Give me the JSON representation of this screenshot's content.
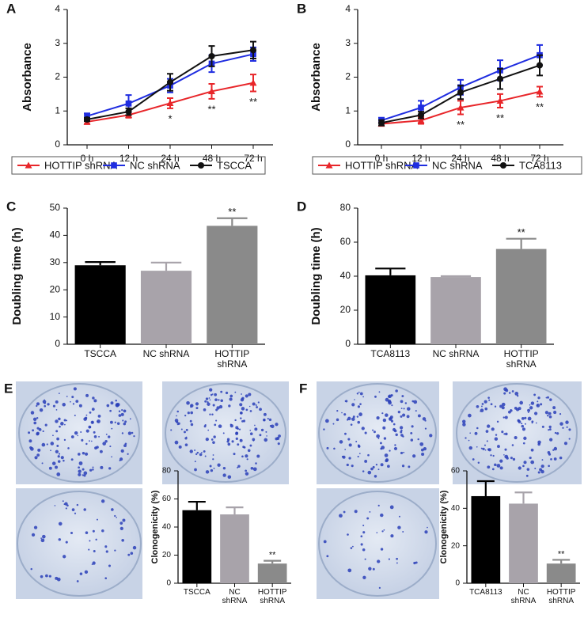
{
  "chart_data": [
    {
      "label": "A",
      "type": "line",
      "y_label": "Absorbance",
      "categories": [
        "0 h",
        "12 h",
        "24 h",
        "48 h",
        "72 h"
      ],
      "ylim": [
        0,
        4
      ],
      "yticks": [
        0,
        1,
        2,
        3,
        4
      ],
      "series": [
        {
          "name": "HOTTIP shRNA",
          "color": "#e8262a",
          "marker": "triangle",
          "values": [
            0.68,
            0.88,
            1.23,
            1.58,
            1.83
          ],
          "errors": [
            0.07,
            0.08,
            0.15,
            0.22,
            0.25
          ]
        },
        {
          "name": "NC shRNA",
          "color": "#1f2de0",
          "marker": "square",
          "values": [
            0.85,
            1.22,
            1.75,
            2.4,
            2.68
          ],
          "errors": [
            0.08,
            0.25,
            0.2,
            0.25,
            0.2
          ]
        },
        {
          "name": "TSCCA",
          "color": "#111111",
          "marker": "circle",
          "values": [
            0.75,
            0.98,
            1.85,
            2.62,
            2.8
          ],
          "errors": [
            0.05,
            0.1,
            0.25,
            0.3,
            0.25
          ]
        }
      ],
      "annotations": [
        {
          "x": "24 h",
          "text": "*"
        },
        {
          "x": "48 h",
          "text": "**"
        },
        {
          "x": "72 h",
          "text": "**"
        }
      ]
    },
    {
      "label": "B",
      "type": "line",
      "y_label": "Absorbance",
      "categories": [
        "0 h",
        "12 h",
        "24 h",
        "48 h",
        "72 h"
      ],
      "ylim": [
        0,
        4
      ],
      "yticks": [
        0,
        1,
        2,
        3,
        4
      ],
      "series": [
        {
          "name": "HOTTIP shRNA",
          "color": "#e8262a",
          "marker": "triangle",
          "values": [
            0.62,
            0.72,
            1.1,
            1.3,
            1.57
          ],
          "errors": [
            0.05,
            0.1,
            0.2,
            0.2,
            0.15
          ]
        },
        {
          "name": "NC shRNA",
          "color": "#1f2de0",
          "marker": "square",
          "values": [
            0.72,
            1.1,
            1.7,
            2.2,
            2.65
          ],
          "errors": [
            0.08,
            0.2,
            0.22,
            0.3,
            0.3
          ]
        },
        {
          "name": "TCA8113",
          "color": "#111111",
          "marker": "circle",
          "values": [
            0.65,
            0.88,
            1.55,
            1.95,
            2.35
          ],
          "errors": [
            0.08,
            0.1,
            0.2,
            0.3,
            0.3
          ]
        }
      ],
      "annotations": [
        {
          "x": "24 h",
          "text": "**"
        },
        {
          "x": "48 h",
          "text": "**"
        },
        {
          "x": "72 h",
          "text": "**"
        }
      ]
    },
    {
      "label": "C",
      "type": "bar",
      "y_label": "Doubling time (h)",
      "categories": [
        "TSCCA",
        "NC shRNA",
        "HOTTIP shRNA"
      ],
      "colors": [
        "#000000",
        "#a8a3aa",
        "#8a8a8a"
      ],
      "values": [
        29,
        27,
        43.5
      ],
      "errors": [
        1.2,
        3,
        2.8
      ],
      "ylim": [
        0,
        50
      ],
      "yticks": [
        0,
        10,
        20,
        30,
        40,
        50
      ],
      "annotations": [
        {
          "x": "HOTTIP shRNA",
          "text": "**"
        }
      ]
    },
    {
      "label": "D",
      "type": "bar",
      "y_label": "Doubling time (h)",
      "categories": [
        "TCA8113",
        "NC shRNA",
        "HOTTIP shRNA"
      ],
      "colors": [
        "#000000",
        "#a8a3aa",
        "#8a8a8a"
      ],
      "values": [
        40.5,
        39.5,
        56
      ],
      "errors": [
        4,
        0.5,
        6
      ],
      "ylim": [
        0,
        80
      ],
      "yticks": [
        0,
        20,
        40,
        60,
        80
      ],
      "annotations": [
        {
          "x": "HOTTIP shRNA",
          "text": "**"
        }
      ]
    },
    {
      "label": "E",
      "type": "bar",
      "y_label": "Clonogenicity (%)",
      "categories": [
        "TSCCA",
        "NC shRNA",
        "HOTTIP shRNA"
      ],
      "colors": [
        "#000000",
        "#a8a3aa",
        "#8a8a8a"
      ],
      "values": [
        52,
        49,
        14
      ],
      "errors": [
        6,
        5,
        2
      ],
      "ylim": [
        0,
        80
      ],
      "yticks": [
        0,
        20,
        40,
        60,
        80
      ],
      "annotations": [
        {
          "x": "HOTTIP shRNA",
          "text": "**"
        }
      ]
    },
    {
      "label": "F",
      "type": "bar",
      "y_label": "Clonogenicity (%)",
      "categories": [
        "TCA8113",
        "NC shRNA",
        "HOTTIP shRNA"
      ],
      "colors": [
        "#000000",
        "#a8a3aa",
        "#8a8a8a"
      ],
      "values": [
        46.5,
        42.5,
        10.5
      ],
      "errors": [
        8,
        6,
        2
      ],
      "ylim": [
        0,
        60
      ],
      "yticks": [
        0,
        20,
        40,
        60
      ],
      "annotations": [
        {
          "x": "HOTTIP shRNA",
          "text": "**"
        }
      ]
    }
  ]
}
